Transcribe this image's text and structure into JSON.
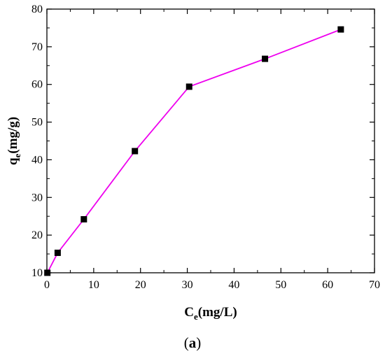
{
  "chart_data": {
    "type": "line",
    "xlabel": {
      "main": "C",
      "sub": "e",
      "rest": "(mg/L)"
    },
    "ylabel": {
      "main": "q",
      "sub": "e",
      "rest": "(mg/g)"
    },
    "xlim": [
      0,
      70
    ],
    "ylim": [
      10,
      80
    ],
    "xticks": [
      0,
      10,
      20,
      30,
      40,
      50,
      60,
      70
    ],
    "yticks": [
      10,
      20,
      30,
      40,
      50,
      60,
      70,
      80
    ],
    "grid": false,
    "series": [
      {
        "color": "#ee00ee",
        "marker": "square",
        "marker_color": "#000000",
        "points": [
          {
            "x": 0.1,
            "y": 10.0
          },
          {
            "x": 2.3,
            "y": 15.3
          },
          {
            "x": 7.9,
            "y": 24.2
          },
          {
            "x": 18.8,
            "y": 42.3
          },
          {
            "x": 30.4,
            "y": 59.4
          },
          {
            "x": 46.6,
            "y": 66.8
          },
          {
            "x": 62.8,
            "y": 74.6
          }
        ]
      }
    ]
  },
  "caption": {
    "open": "(",
    "letter": "a",
    "close": ")"
  }
}
